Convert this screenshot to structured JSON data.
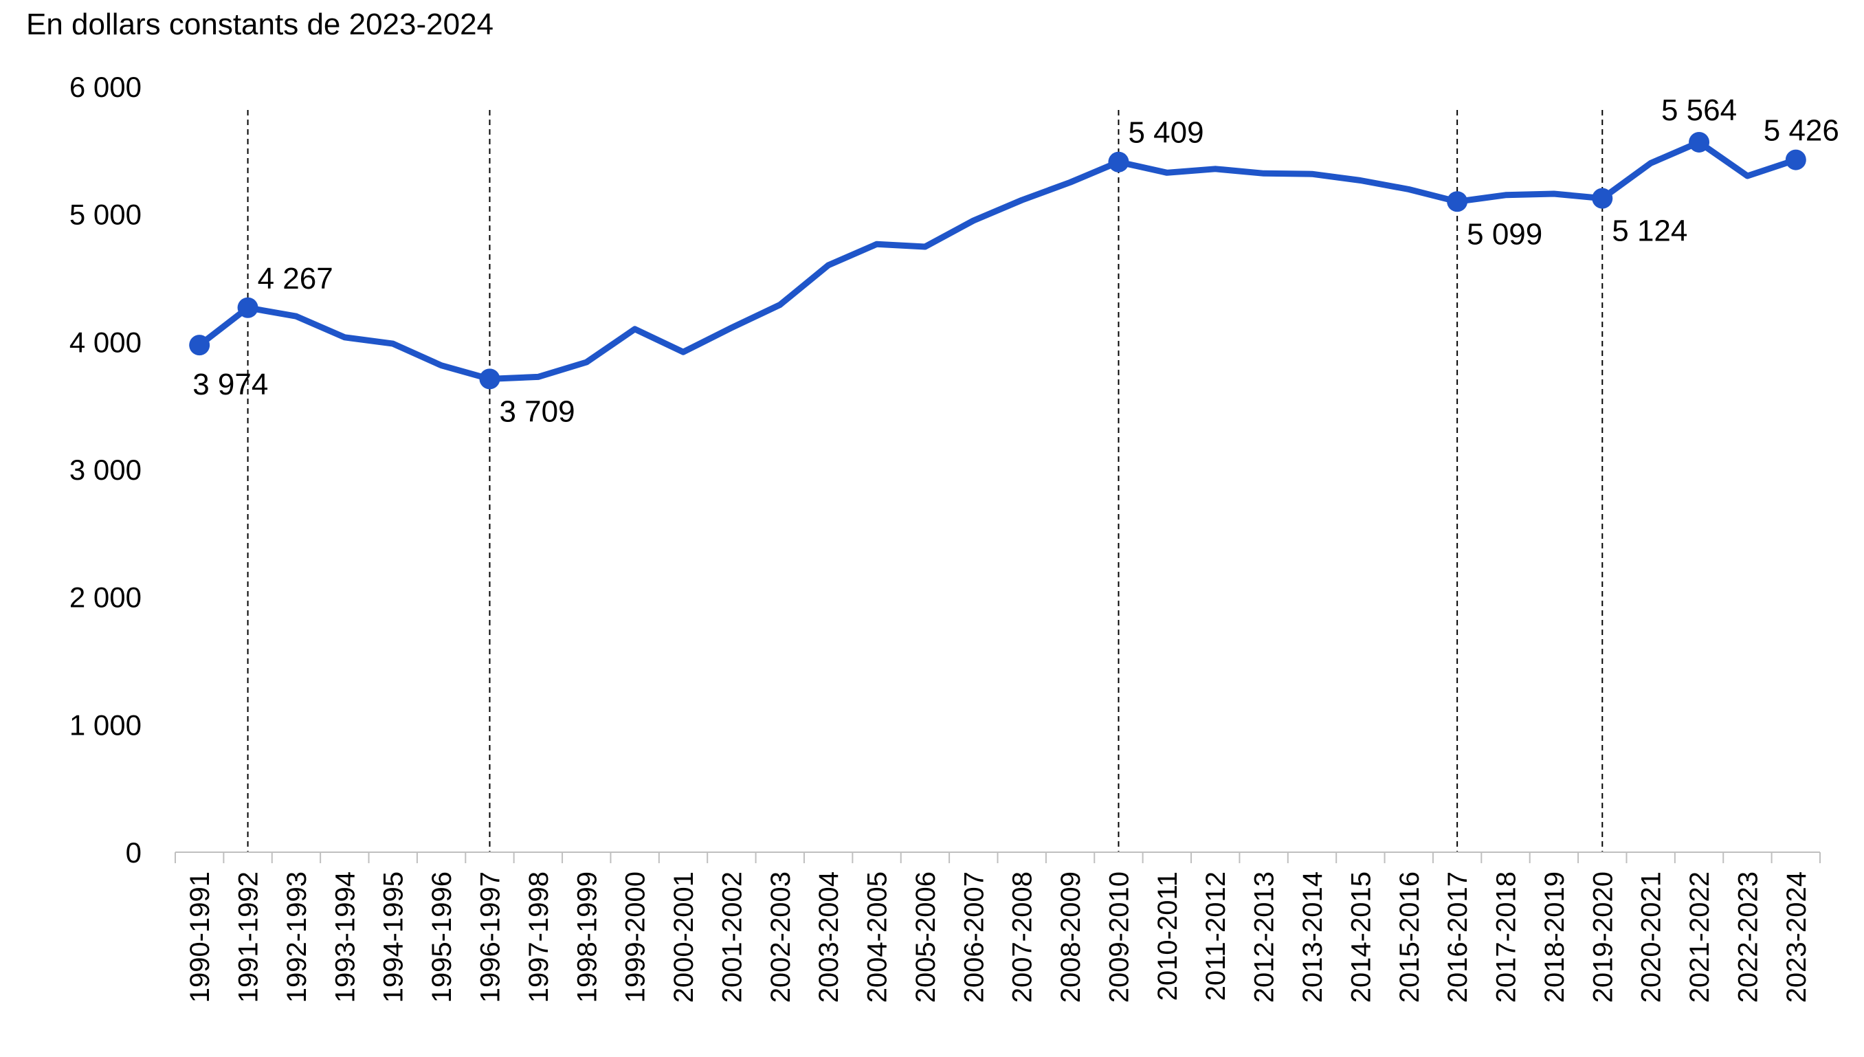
{
  "chart_data": {
    "type": "line",
    "title": "",
    "ylabel": "En dollars constants de 2023-2024",
    "xlabel": "",
    "ylim": [
      0,
      6000
    ],
    "yticks": [
      0,
      1000,
      2000,
      3000,
      4000,
      5000,
      6000
    ],
    "ytick_labels": [
      "0",
      "1 000",
      "2 000",
      "3 000",
      "4 000",
      "5 000",
      "6 000"
    ],
    "grid": false,
    "legend": "none",
    "categories": [
      "1990-1991",
      "1991-1992",
      "1992-1993",
      "1993-1994",
      "1994-1995",
      "1995-1996",
      "1996-1997",
      "1997-1998",
      "1998-1999",
      "1999-2000",
      "2000-2001",
      "2001-2002",
      "2002-2003",
      "2003-2004",
      "2004-2005",
      "2005-2006",
      "2006-2007",
      "2007-2008",
      "2008-2009",
      "2009-2010",
      "2010-2011",
      "2011-2012",
      "2012-2013",
      "2013-2014",
      "2014-2015",
      "2015-2016",
      "2016-2017",
      "2017-2018",
      "2018-2019",
      "2019-2020",
      "2020-2021",
      "2021-2022",
      "2022-2023",
      "2023-2024"
    ],
    "series": [
      {
        "color": "#1f55c9",
        "values": [
          3974,
          4267,
          4200,
          4035,
          3985,
          3815,
          3709,
          3725,
          3840,
          4100,
          3920,
          4110,
          4290,
          4600,
          4765,
          4745,
          4950,
          5110,
          5250,
          5409,
          5325,
          5355,
          5320,
          5315,
          5265,
          5195,
          5099,
          5150,
          5160,
          5124,
          5400,
          5564,
          5300,
          5426
        ]
      }
    ],
    "highlighted_points": [
      {
        "category": "1990-1991",
        "label": "3 974",
        "position": "below"
      },
      {
        "category": "1991-1992",
        "label": "4 267",
        "position": "above",
        "reference_line": true
      },
      {
        "category": "1996-1997",
        "label": "3 709",
        "position": "below",
        "reference_line": true
      },
      {
        "category": "2009-2010",
        "label": "5 409",
        "position": "above",
        "reference_line": true
      },
      {
        "category": "2016-2017",
        "label": "5 099",
        "position": "below",
        "reference_line": true
      },
      {
        "category": "2019-2020",
        "label": "5 124",
        "position": "below",
        "reference_line": true
      },
      {
        "category": "2021-2022",
        "label": "5 564",
        "position": "above"
      },
      {
        "category": "2023-2024",
        "label": "5 426",
        "position": "above"
      }
    ],
    "colors": {
      "line": "#1f55c9",
      "axis": "#bfbfbf",
      "reference_line": "#000000",
      "text": "#000000"
    }
  }
}
